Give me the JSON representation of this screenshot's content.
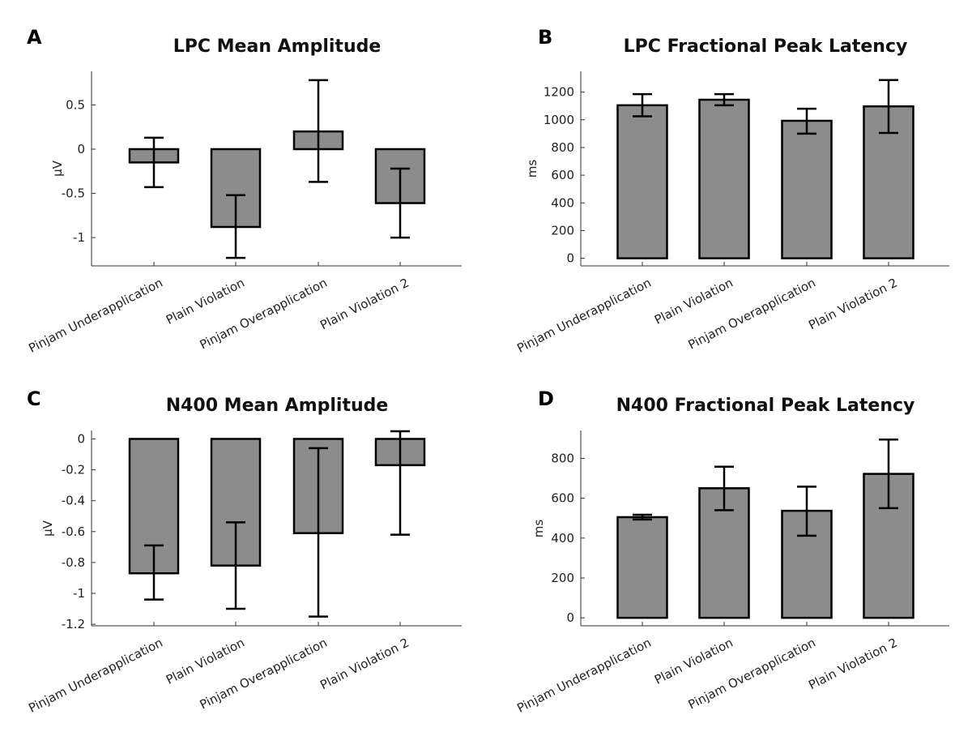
{
  "colors": {
    "bar_fill": "#8c8c8c",
    "bar_edge": "#000000",
    "axis": "#333333"
  },
  "chart_data": [
    {
      "panel": "A",
      "type": "bar",
      "title": "LPC Mean Amplitude",
      "xlabel": "",
      "ylabel": "μV",
      "categories": [
        "Pinjam Underapplication",
        "Plain Violation",
        "Pinjam Overapplication",
        "Plain Violation 2"
      ],
      "values": [
        -0.15,
        -0.88,
        0.2,
        -0.61
      ],
      "error_low": [
        -0.43,
        -1.23,
        -0.37,
        -1.0
      ],
      "error_high": [
        0.13,
        -0.52,
        0.78,
        -0.22
      ],
      "ylim": [
        -1.32,
        0.88
      ],
      "yticks": [
        -1,
        -0.5,
        0,
        0.5
      ],
      "ytick_labels": [
        "-1",
        "-0.5",
        "0",
        "0.5"
      ],
      "grid": false
    },
    {
      "panel": "B",
      "type": "bar",
      "title": "LPC Fractional Peak Latency",
      "xlabel": "",
      "ylabel": "ms",
      "categories": [
        "Pinjam Underapplication",
        "Plain Violation",
        "Pinjam Overapplication",
        "Plain Violation 2"
      ],
      "values": [
        1105,
        1145,
        993,
        1097
      ],
      "error_low": [
        1025,
        1105,
        900,
        905
      ],
      "error_high": [
        1185,
        1185,
        1080,
        1287
      ],
      "ylim": [
        -55,
        1350
      ],
      "yticks": [
        0,
        200,
        400,
        600,
        800,
        1000,
        1200
      ],
      "ytick_labels": [
        "0",
        "200",
        "400",
        "600",
        "800",
        "1000",
        "1200"
      ],
      "grid": false
    },
    {
      "panel": "C",
      "type": "bar",
      "title": "N400 Mean Amplitude",
      "xlabel": "",
      "ylabel": "μV",
      "categories": [
        "Pinjam Underapplication",
        "Plain Violation",
        "Pinjam Overapplication",
        "Plain Violation 2"
      ],
      "values": [
        -0.87,
        -0.82,
        -0.61,
        -0.17
      ],
      "error_low": [
        -1.04,
        -1.1,
        -1.15,
        -0.62
      ],
      "error_high": [
        -0.69,
        -0.54,
        -0.06,
        0.05
      ],
      "ylim": [
        -1.21,
        0.055
      ],
      "yticks": [
        -1.2,
        -1,
        -0.8,
        -0.6,
        -0.4,
        -0.2,
        0
      ],
      "ytick_labels": [
        "-1.2",
        "-1",
        "-0.8",
        "-0.6",
        "-0.4",
        "-0.2",
        "0"
      ],
      "grid": false
    },
    {
      "panel": "D",
      "type": "bar",
      "title": "N400 Fractional Peak Latency",
      "xlabel": "",
      "ylabel": "ms",
      "categories": [
        "Pinjam Underapplication",
        "Plain Violation",
        "Pinjam Overapplication",
        "Plain Violation 2"
      ],
      "values": [
        505,
        650,
        537,
        722
      ],
      "error_low": [
        493,
        540,
        412,
        550
      ],
      "error_high": [
        517,
        758,
        658,
        894
      ],
      "ylim": [
        -40,
        940
      ],
      "yticks": [
        0,
        200,
        400,
        600,
        800
      ],
      "ytick_labels": [
        "0",
        "200",
        "400",
        "600",
        "800"
      ],
      "grid": false
    }
  ]
}
